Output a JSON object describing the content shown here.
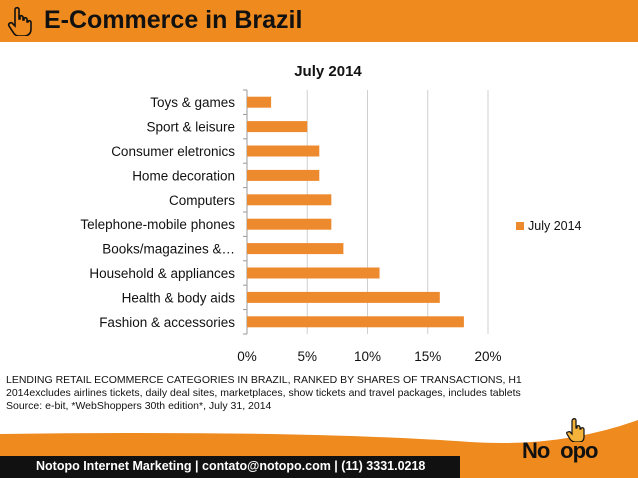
{
  "header": {
    "title": "E-Commerce in Brazil",
    "bar_color": "#ee8a1e",
    "icon": "pointing-hand-icon"
  },
  "chart_data": {
    "type": "bar",
    "orientation": "horizontal",
    "title": "July 2014",
    "categories": [
      "Fashion & accessories",
      "Health & body aids",
      "Household & appliances",
      "Books/magazines &…",
      "Telephone-mobile phones",
      "Computers",
      "Home decoration",
      "Consumer eletronics",
      "Sport & leisure",
      "Toys & games"
    ],
    "series": [
      {
        "name": "July 2014",
        "color": "#ee8a2e",
        "values": [
          18,
          16,
          11,
          8,
          7,
          7,
          6,
          6,
          5,
          2
        ]
      }
    ],
    "xlim": [
      0,
      20
    ],
    "xticks": [
      "0%",
      "5%",
      "10%",
      "15%",
      "20%"
    ],
    "x_tick_values": [
      0,
      5,
      10,
      15,
      20
    ],
    "grid": true,
    "legend": "right"
  },
  "caption": {
    "line1": "LENDING RETAIL ECOMMERCE CATEGORIES IN BRAZIL, RANKED BY SHARES OF TRANSACTIONS, H1 2014excludes airlines tickets, daily deal sites, marketplaces, show tickets and travel packages, includes tablets",
    "line2": "Source: e-bit, *WebShoppers 30th edition*, July 31, 2014"
  },
  "footer": {
    "text": "Notopo Internet Marketing | contato@notopo.com  | (11) 3331.0218"
  },
  "logo": {
    "text": "NoTopo.com",
    "icon": "pointing-hand-icon"
  }
}
